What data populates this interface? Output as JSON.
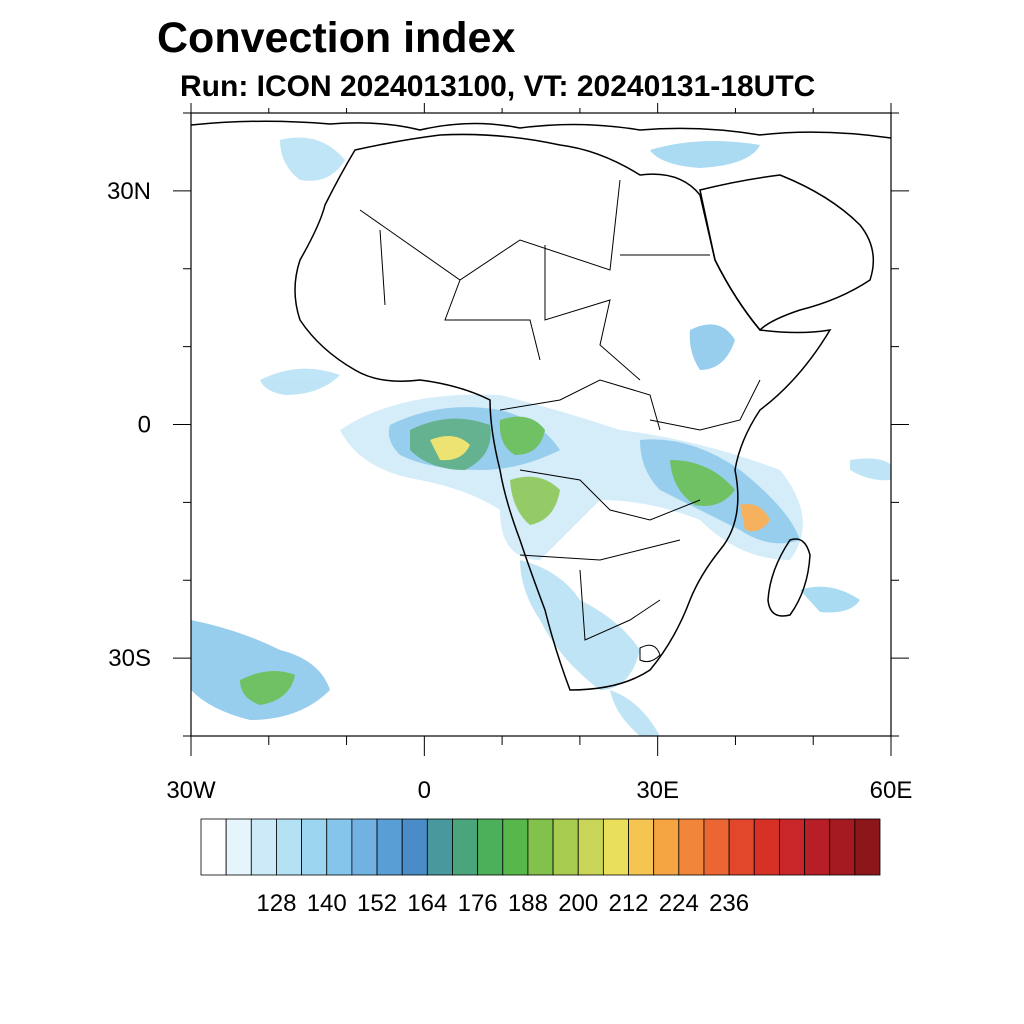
{
  "title": "Convection index",
  "subtitle": "Run: ICON 2024013100,  VT: 20240131-18UTC",
  "map": {
    "projection": "cylindrical-equidistant",
    "lon_range": [
      -30,
      60
    ],
    "lat_range": [
      -40,
      40
    ],
    "lat_ticks": [
      {
        "value": 30,
        "label": "30N"
      },
      {
        "value": 0,
        "label": "0"
      },
      {
        "value": -30,
        "label": "30S"
      }
    ],
    "lon_ticks": [
      {
        "value": -30,
        "label": "30W"
      },
      {
        "value": 0,
        "label": "0"
      },
      {
        "value": 30,
        "label": "30E"
      },
      {
        "value": 60,
        "label": "60E"
      }
    ],
    "minor_lat_ticks": [
      40,
      20,
      10,
      -10,
      -20,
      -40
    ],
    "minor_lon_ticks": [
      -20,
      -10,
      10,
      20,
      40,
      50
    ]
  },
  "colorbar": {
    "colors": [
      "#ffffff",
      "#e6f4fc",
      "#cdeaf8",
      "#b4e0f4",
      "#9bd5f0",
      "#85c5eb",
      "#72b2e3",
      "#5a9ed6",
      "#4a8cc7",
      "#48999e",
      "#4aa57c",
      "#4caf5a",
      "#58b74a",
      "#82c24c",
      "#a8cc50",
      "#c9d556",
      "#eadf5a",
      "#f6c450",
      "#f5a442",
      "#f1853a",
      "#eb6632",
      "#e2472c",
      "#d73027",
      "#c9262a",
      "#b81e25",
      "#a51a20",
      "#8d161b"
    ],
    "tick_labels": [
      "128",
      "140",
      "152",
      "164",
      "176",
      "188",
      "200",
      "212",
      "224",
      "236"
    ]
  }
}
